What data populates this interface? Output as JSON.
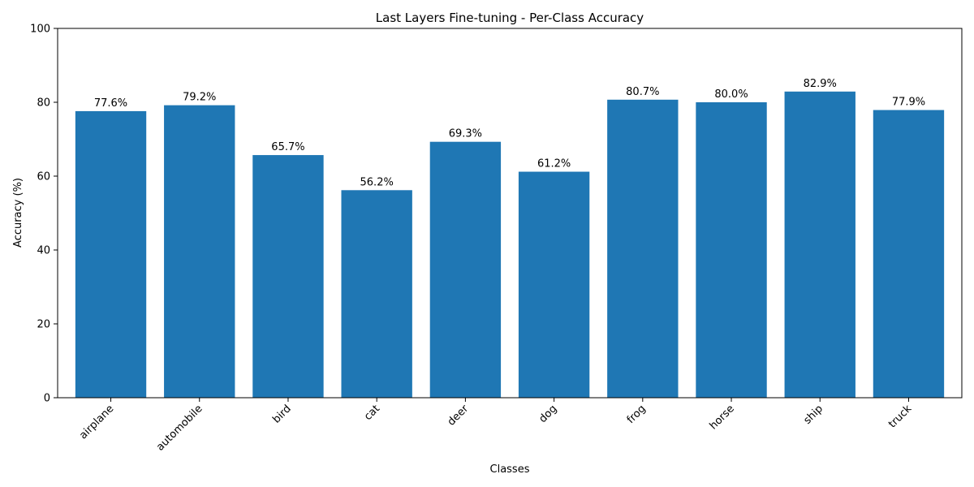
{
  "chart_data": {
    "type": "bar",
    "title": "Last Layers Fine-tuning - Per-Class Accuracy",
    "xlabel": "Classes",
    "ylabel": "Accuracy (%)",
    "ylim": [
      0,
      100
    ],
    "yticks": [
      0,
      20,
      40,
      60,
      80,
      100
    ],
    "grid": false,
    "legend": "none",
    "bar_color": "#1f77b4",
    "categories": [
      "airplane",
      "automobile",
      "bird",
      "cat",
      "deer",
      "dog",
      "frog",
      "horse",
      "ship",
      "truck"
    ],
    "values": [
      77.6,
      79.2,
      65.7,
      56.2,
      69.3,
      61.2,
      80.7,
      80.0,
      82.9,
      77.9
    ],
    "value_labels": [
      "77.6%",
      "79.2%",
      "65.7%",
      "56.2%",
      "69.3%",
      "61.2%",
      "80.7%",
      "80.0%",
      "82.9%",
      "77.9%"
    ]
  }
}
